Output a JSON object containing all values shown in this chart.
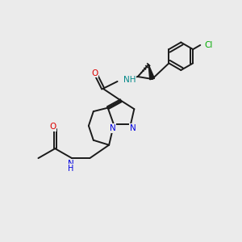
{
  "background_color": "#ebebeb",
  "bond_color": "#1a1a1a",
  "atom_colors": {
    "N": "#0000e0",
    "O": "#dd0000",
    "Cl": "#00aa00",
    "NH_amide": "#008888"
  },
  "figsize": [
    3.0,
    3.0
  ],
  "dpi": 100
}
